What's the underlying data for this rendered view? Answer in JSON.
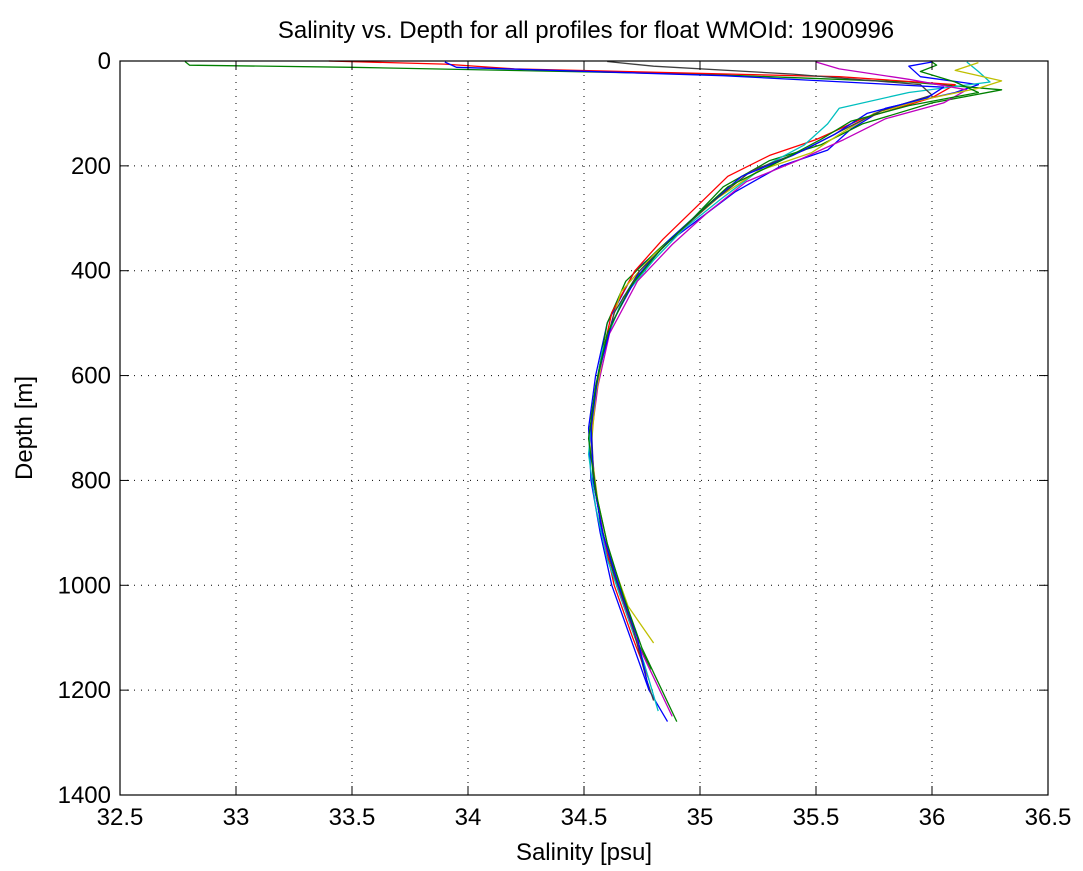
{
  "chart_data": {
    "type": "line",
    "title": "Salinity vs. Depth for all profiles for float WMOId: 1900996",
    "xlabel": "Salinity [psu]",
    "ylabel": "Depth [m]",
    "xlim": [
      32.5,
      36.5
    ],
    "ylim": [
      0,
      1400
    ],
    "y_reversed": true,
    "grid": true,
    "legend": "none",
    "xticks": [
      "32.5",
      "33",
      "33.5",
      "34",
      "34.5",
      "35",
      "35.5",
      "36",
      "36.5"
    ],
    "yticks": [
      "0",
      "200",
      "400",
      "600",
      "800",
      "1000",
      "1200",
      "1400"
    ],
    "colors": [
      "#0000ff",
      "#008000",
      "#ff0000",
      "#00bfbf",
      "#bf00bf",
      "#bfbf00",
      "#404040"
    ],
    "series": [
      {
        "depth": [
          2,
          10,
          30,
          45,
          60,
          90,
          130,
          170,
          200,
          250,
          300,
          350,
          400,
          500,
          600,
          700,
          800,
          900,
          1000,
          1100,
          1200,
          1260
        ],
        "salinity": [
          36.0,
          35.9,
          35.95,
          36.2,
          36.1,
          35.8,
          35.65,
          35.55,
          35.35,
          35.15,
          35.0,
          34.85,
          34.72,
          34.6,
          34.55,
          34.52,
          34.53,
          34.57,
          34.62,
          34.7,
          34.78,
          34.86
        ]
      },
      {
        "depth": [
          1,
          8,
          12,
          25,
          40,
          55,
          80,
          120,
          160,
          190,
          240,
          300,
          360,
          420,
          500,
          600,
          720,
          800,
          900,
          1000,
          1100,
          1160
        ],
        "salinity": [
          32.78,
          32.8,
          33.5,
          35.0,
          35.9,
          36.3,
          36.0,
          35.7,
          35.52,
          35.3,
          35.1,
          34.97,
          34.82,
          34.68,
          34.6,
          34.56,
          34.53,
          34.54,
          34.58,
          34.64,
          34.72,
          34.79
        ]
      },
      {
        "depth": [
          0,
          6,
          15,
          30,
          45,
          70,
          110,
          150,
          180,
          220,
          280,
          340,
          400,
          480,
          580,
          700,
          800,
          900,
          1000,
          1100,
          1180
        ],
        "salinity": [
          33.4,
          33.9,
          34.2,
          35.6,
          36.1,
          36.0,
          35.7,
          35.5,
          35.3,
          35.12,
          34.98,
          34.84,
          34.72,
          34.62,
          34.57,
          34.53,
          34.54,
          34.58,
          34.63,
          34.71,
          34.78
        ]
      },
      {
        "depth": [
          2,
          20,
          40,
          60,
          90,
          120,
          160,
          200,
          260,
          320,
          380,
          450,
          550,
          650,
          750,
          850,
          950,
          1050,
          1150,
          1240
        ],
        "salinity": [
          36.15,
          36.2,
          36.25,
          35.9,
          35.6,
          35.55,
          35.45,
          35.28,
          35.1,
          34.93,
          34.8,
          34.67,
          34.58,
          34.54,
          34.52,
          34.55,
          34.6,
          34.68,
          34.76,
          34.82
        ]
      },
      {
        "depth": [
          2,
          15,
          35,
          55,
          80,
          110,
          150,
          190,
          230,
          290,
          350,
          420,
          520,
          620,
          720,
          820,
          920,
          1020,
          1120,
          1250
        ],
        "salinity": [
          35.5,
          35.6,
          35.9,
          36.15,
          36.05,
          35.8,
          35.62,
          35.42,
          35.2,
          35.03,
          34.88,
          34.73,
          34.61,
          34.56,
          34.53,
          34.55,
          34.59,
          34.66,
          34.74,
          34.88
        ]
      },
      {
        "depth": [
          3,
          18,
          38,
          52,
          75,
          100,
          140,
          175,
          210,
          260,
          310,
          370,
          440,
          540,
          640,
          740,
          840,
          940,
          1040,
          1110
        ],
        "salinity": [
          36.2,
          36.1,
          36.3,
          36.2,
          35.95,
          35.75,
          35.6,
          35.48,
          35.25,
          35.08,
          34.95,
          34.8,
          34.66,
          34.59,
          34.55,
          34.53,
          34.56,
          34.61,
          34.69,
          34.8
        ]
      },
      {
        "depth": [
          1,
          10,
          25,
          45,
          65,
          95,
          135,
          170,
          210,
          270,
          330,
          400,
          480,
          580,
          680,
          780,
          880,
          980,
          1080,
          1180,
          1220
        ],
        "salinity": [
          34.6,
          34.8,
          35.4,
          35.95,
          36.0,
          35.78,
          35.6,
          35.45,
          35.22,
          35.05,
          34.9,
          34.74,
          34.63,
          34.57,
          34.53,
          34.54,
          34.57,
          34.63,
          34.71,
          34.77,
          34.8
        ]
      },
      {
        "depth": [
          2,
          12,
          28,
          50,
          70,
          100,
          140,
          180,
          220,
          280,
          340,
          410,
          500,
          600,
          700,
          800,
          900,
          1000,
          1100,
          1200
        ],
        "salinity": [
          33.9,
          33.95,
          35.1,
          36.05,
          35.98,
          35.72,
          35.58,
          35.4,
          35.18,
          35.02,
          34.87,
          34.73,
          34.62,
          34.56,
          34.53,
          34.54,
          34.58,
          34.65,
          34.73,
          34.78
        ]
      },
      {
        "depth": [
          2,
          8,
          20,
          40,
          60,
          85,
          115,
          150,
          190,
          240,
          300,
          360,
          430,
          520,
          620,
          720,
          820,
          920,
          1020,
          1120,
          1260
        ],
        "salinity": [
          36.0,
          36.02,
          35.95,
          36.1,
          36.2,
          35.9,
          35.65,
          35.52,
          35.35,
          35.12,
          34.97,
          34.83,
          34.7,
          34.6,
          34.55,
          34.52,
          34.55,
          34.6,
          34.67,
          34.75,
          34.9
        ]
      }
    ]
  }
}
